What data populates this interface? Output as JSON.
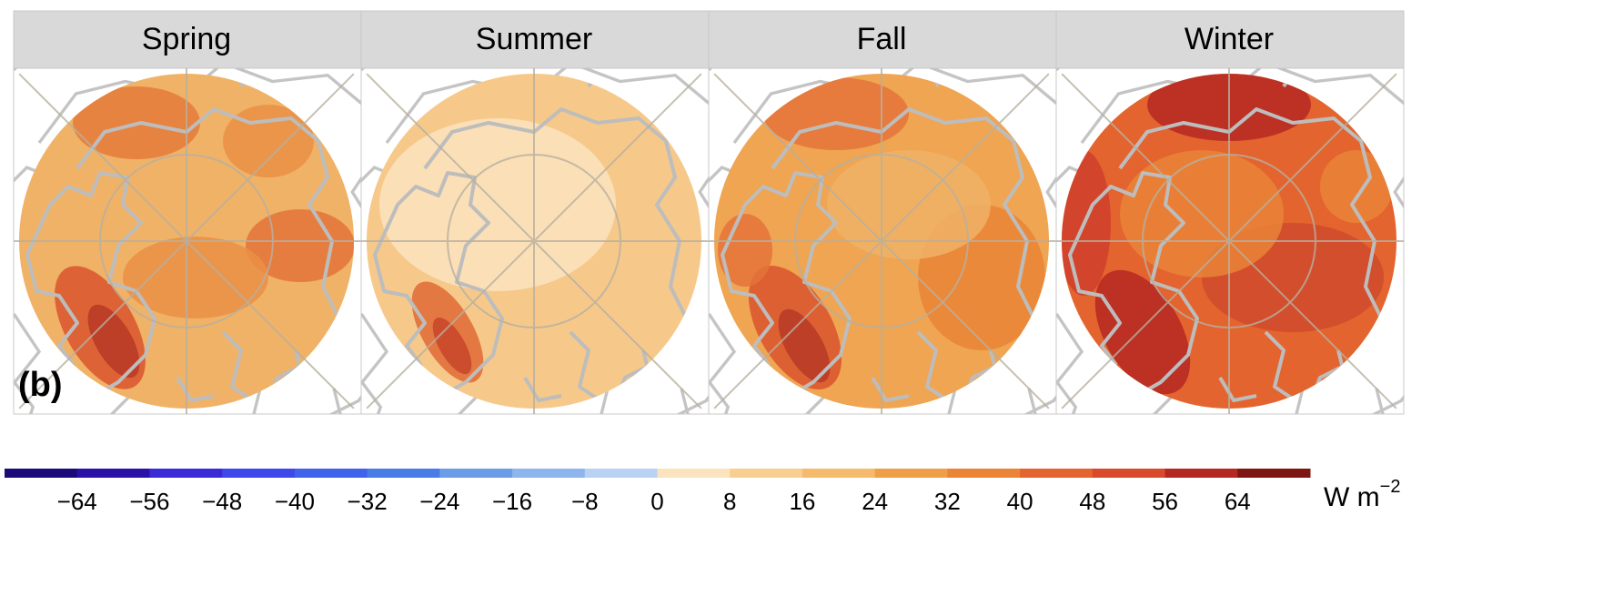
{
  "panels": [
    {
      "title": "Spring"
    },
    {
      "title": "Summer"
    },
    {
      "title": "Fall"
    },
    {
      "title": "Winter"
    }
  ],
  "panel_label": "(b)",
  "colorbar": {
    "colors": [
      "#1a0a7a",
      "#2a12a8",
      "#3a2bd6",
      "#3f48e8",
      "#3f63ea",
      "#4a7ce8",
      "#6a9ce8",
      "#8fb5ee",
      "#b9d2f4",
      "#fbe3bd",
      "#f8cf91",
      "#f5ba6b",
      "#efa047",
      "#ea8437",
      "#e3642e",
      "#d94a2c",
      "#b52822",
      "#7e1711"
    ],
    "lim": [
      -72,
      72
    ],
    "ticks": [
      {
        "value": -64,
        "label": "−64"
      },
      {
        "value": -56,
        "label": "−56"
      },
      {
        "value": -48,
        "label": "−48"
      },
      {
        "value": -40,
        "label": "−40"
      },
      {
        "value": -32,
        "label": "−32"
      },
      {
        "value": -24,
        "label": "−24"
      },
      {
        "value": -16,
        "label": "−16"
      },
      {
        "value": -8,
        "label": "−8"
      },
      0,
      8,
      16,
      24,
      32,
      40,
      48,
      56,
      64
    ],
    "unit": "W m",
    "unit_exponent": "−2"
  }
}
